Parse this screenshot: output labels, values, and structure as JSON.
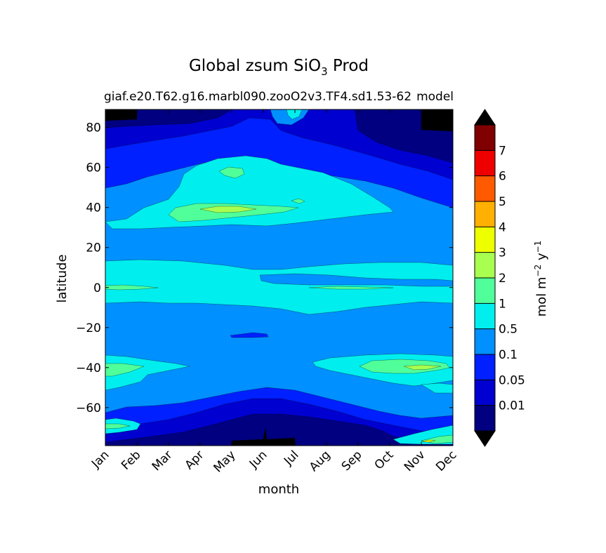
{
  "chart_data": {
    "type": "heatmap",
    "plot_style": "filled-contour",
    "title": {
      "main": "Global zsum SiO",
      "subscript": "3",
      "suffix": " Prod"
    },
    "subtitle": "giaf.e20.T62.g16.marbl090.zooO2v3.TF4.sd1.53-62",
    "subtitle_overlap": "model",
    "xlabel": "month",
    "ylabel": "latitude",
    "x_categories": [
      "Jan",
      "Feb",
      "Mar",
      "Apr",
      "May",
      "Jun",
      "Jul",
      "Aug",
      "Sep",
      "Oct",
      "Nov",
      "Dec"
    ],
    "y_ticks": [
      80,
      60,
      40,
      20,
      0,
      -20,
      -40,
      -60
    ],
    "y_tick_labels": [
      "80",
      "60",
      "40",
      "20",
      "0",
      "−20",
      "−40",
      "−60"
    ],
    "ylim": [
      -79,
      89
    ],
    "colorbar": {
      "label_prefix": "mol m",
      "label_exp1": "−2",
      "label_mid": " y",
      "label_exp2": "−1",
      "levels": [
        0.01,
        0.05,
        0.1,
        0.5,
        1,
        2,
        3,
        4,
        5,
        6,
        7
      ],
      "tick_labels": [
        "0.01",
        "0.05",
        "0.1",
        "0.5",
        "1",
        "2",
        "3",
        "4",
        "5",
        "6",
        "7"
      ],
      "colors": [
        "#000080",
        "#0000d0",
        "#0020ff",
        "#0090ff",
        "#00eeee",
        "#50ff9a",
        "#a8ff50",
        "#eeff00",
        "#ffb000",
        "#ff5a00",
        "#ee0000",
        "#800000"
      ],
      "extend": "both",
      "under_color": "#000000",
      "over_color": "#000000"
    },
    "features": [
      {
        "type": "band",
        "month_start": 0,
        "month_end": 11,
        "lat_range": [
          -2,
          14
        ],
        "level": 4,
        "description": "equatorial band 0.5-1"
      },
      {
        "type": "blob",
        "month_center": 4.5,
        "lat_center": 42,
        "level": 4,
        "description": "northern mid-latitude 0.5-1 region"
      },
      {
        "type": "blob",
        "month_center": 4,
        "lat_center": 40,
        "level": 5,
        "description": "1-2 contour near 40N, Apr-Jun"
      },
      {
        "type": "blob",
        "month_center": 4,
        "lat_center": 40,
        "level": 6,
        "description": "2-3 core near 40N, May"
      },
      {
        "type": "blob",
        "month_center": 9.8,
        "lat_center": -39,
        "level": 5,
        "description": "1-2 region near 40S, Oct-Dec"
      },
      {
        "type": "blob",
        "month_center": 0.3,
        "lat_center": -40,
        "level": 5,
        "description": "1-2 region near 40S, Jan"
      },
      {
        "type": "band",
        "month_start": 0,
        "month_end": 11,
        "lat_range": [
          -58,
          -50
        ],
        "level": 2,
        "description": "southern 0.05-0.1 belt"
      },
      {
        "type": "polar",
        "lat_range": [
          70,
          89
        ],
        "level": 0,
        "description": "Arctic low productivity in winter"
      },
      {
        "type": "polar",
        "lat_range": [
          -79,
          -68
        ],
        "level": 0,
        "description": "Antarctic low productivity in winter"
      }
    ]
  }
}
